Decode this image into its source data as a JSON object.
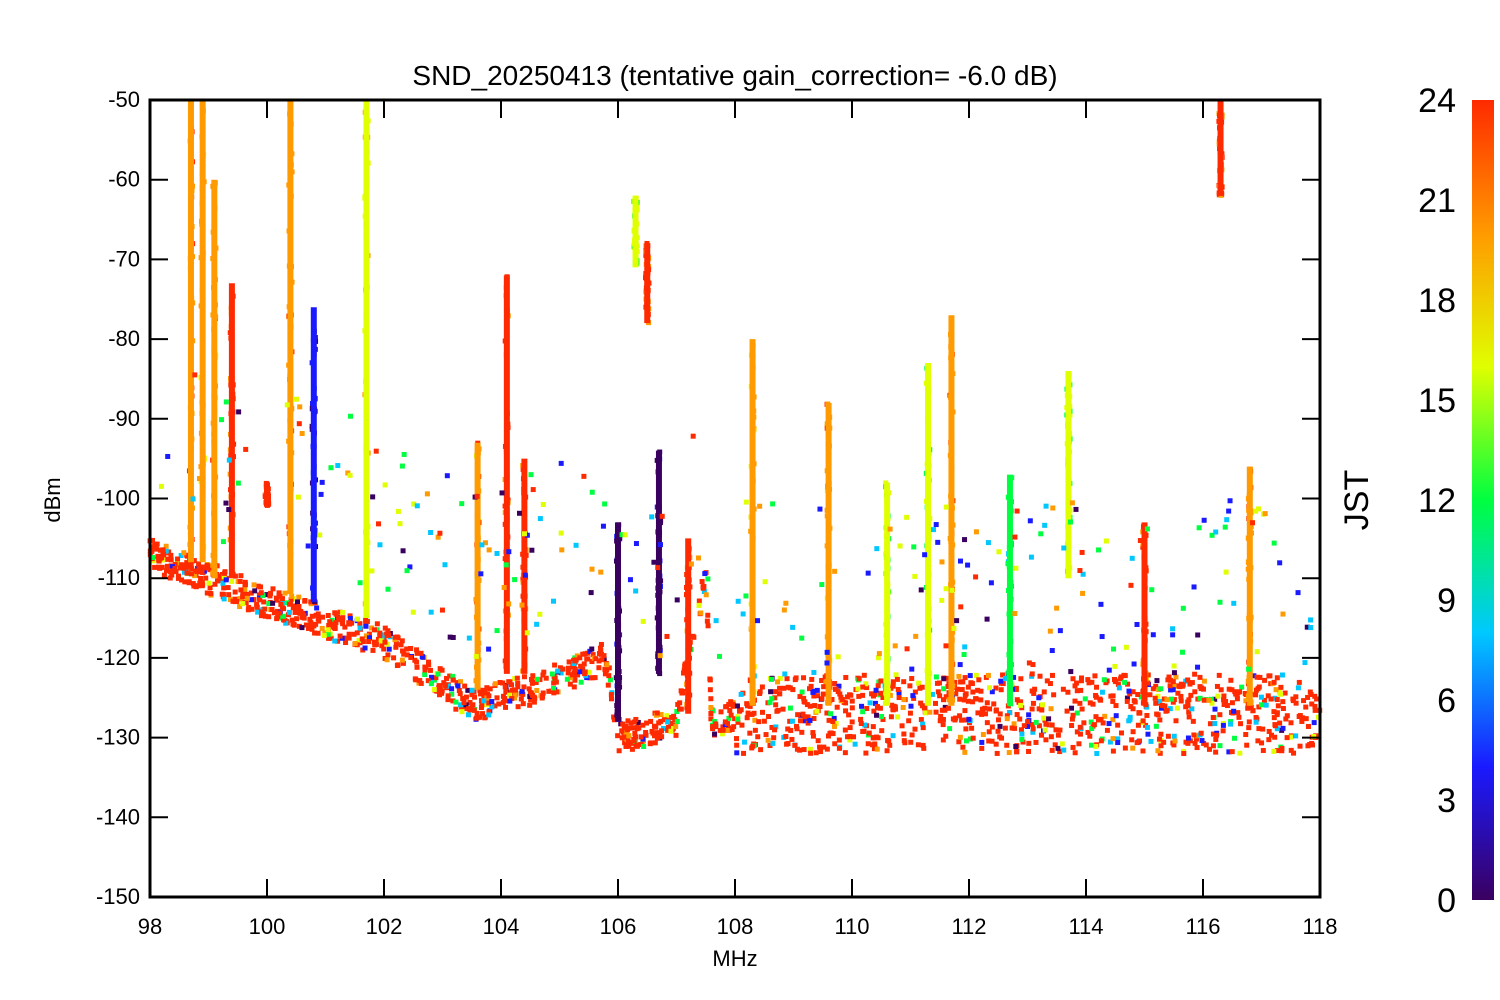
{
  "chart_data": {
    "type": "scatter",
    "title": "SND_20250413 (tentative gain_correction= -6.0 dB)",
    "xlabel": "MHz",
    "ylabel": "dBm",
    "xlim": [
      98,
      118
    ],
    "ylim": [
      -150,
      -50
    ],
    "x_ticks": [
      98,
      100,
      102,
      104,
      106,
      108,
      110,
      112,
      114,
      116,
      118
    ],
    "y_ticks": [
      -50,
      -60,
      -70,
      -80,
      -90,
      -100,
      -110,
      -120,
      -130,
      -140,
      -150
    ],
    "grid": false,
    "colorbar": {
      "label": "JST",
      "range": [
        0,
        24
      ],
      "ticks": [
        0,
        3,
        6,
        9,
        12,
        15,
        18,
        21,
        24
      ],
      "colormap": "rainbow",
      "colors": [
        "#3a0060",
        "#1a1aff",
        "#00c8ff",
        "#00ff40",
        "#e0ff00",
        "#ff9a00",
        "#ff2a00"
      ]
    },
    "noise_floor": [
      {
        "x": 98.0,
        "y": -107
      },
      {
        "x": 100.0,
        "y": -113
      },
      {
        "x": 102.0,
        "y": -118
      },
      {
        "x": 103.5,
        "y": -126
      },
      {
        "x": 104.5,
        "y": -124
      },
      {
        "x": 105.8,
        "y": -120
      },
      {
        "x": 106.0,
        "y": -130
      },
      {
        "x": 107.0,
        "y": -128
      },
      {
        "x": 107.5,
        "y": -110
      },
      {
        "x": 107.6,
        "y": -128
      },
      {
        "x": 108.0,
        "y": -127
      },
      {
        "x": 112.0,
        "y": -127
      },
      {
        "x": 118.0,
        "y": -127
      }
    ],
    "signals": [
      {
        "x": 98.7,
        "top": -50,
        "bottom": -108,
        "jst": 21
      },
      {
        "x": 98.9,
        "top": -50,
        "bottom": -108,
        "jst": 18
      },
      {
        "x": 99.1,
        "top": -60,
        "bottom": -110,
        "jst": 20
      },
      {
        "x": 99.4,
        "top": -73,
        "bottom": -110,
        "jst": 22
      },
      {
        "x": 100.0,
        "top": -98,
        "bottom": -101,
        "jst": 24
      },
      {
        "x": 100.4,
        "top": -50,
        "bottom": -112,
        "jst": 21
      },
      {
        "x": 100.8,
        "top": -76,
        "bottom": -113,
        "jst": 2
      },
      {
        "x": 101.7,
        "top": -50,
        "bottom": -115,
        "jst": 17
      },
      {
        "x": 103.6,
        "top": -93,
        "bottom": -124,
        "jst": 20
      },
      {
        "x": 104.1,
        "top": -72,
        "bottom": -122,
        "jst": 22
      },
      {
        "x": 104.4,
        "top": -95,
        "bottom": -122,
        "jst": 22
      },
      {
        "x": 106.3,
        "top": -62,
        "bottom": -71,
        "jst": 15
      },
      {
        "x": 106.5,
        "top": -68,
        "bottom": -78,
        "jst": 22
      },
      {
        "x": 106.0,
        "top": -103,
        "bottom": -128,
        "jst": 1
      },
      {
        "x": 106.7,
        "top": -94,
        "bottom": -122,
        "jst": 1
      },
      {
        "x": 107.2,
        "top": -105,
        "bottom": -127,
        "jst": 23
      },
      {
        "x": 108.3,
        "top": -80,
        "bottom": -126,
        "jst": 18
      },
      {
        "x": 109.6,
        "top": -88,
        "bottom": -126,
        "jst": 20
      },
      {
        "x": 110.6,
        "top": -98,
        "bottom": -126,
        "jst": 14
      },
      {
        "x": 111.3,
        "top": -83,
        "bottom": -126,
        "jst": 16
      },
      {
        "x": 111.7,
        "top": -77,
        "bottom": -126,
        "jst": 21
      },
      {
        "x": 112.7,
        "top": -97,
        "bottom": -126,
        "jst": 10
      },
      {
        "x": 113.7,
        "top": -84,
        "bottom": -110,
        "jst": 15
      },
      {
        "x": 115.0,
        "top": -103,
        "bottom": -126,
        "jst": 23
      },
      {
        "x": 116.3,
        "top": -50,
        "bottom": -62,
        "jst": 22
      },
      {
        "x": 116.8,
        "top": -96,
        "bottom": -126,
        "jst": 21
      }
    ]
  }
}
